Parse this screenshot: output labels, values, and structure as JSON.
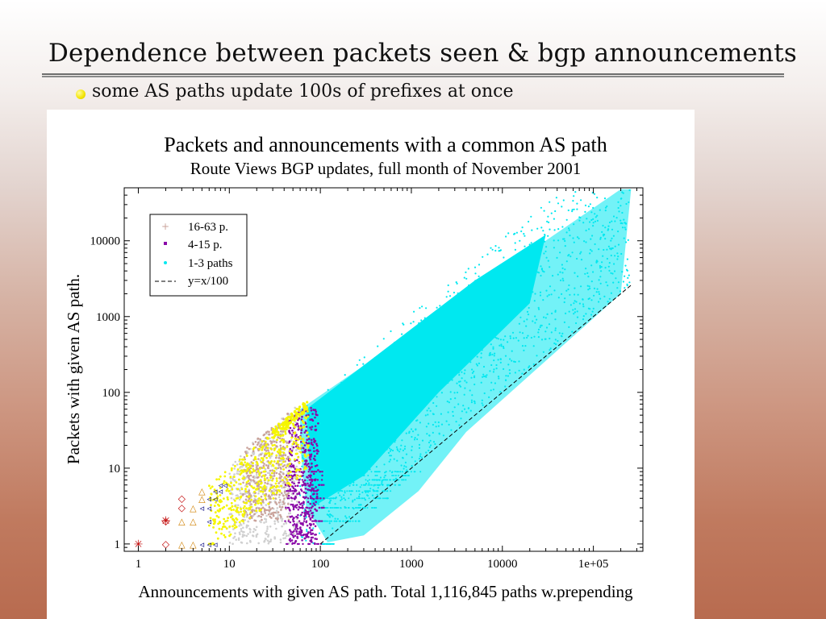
{
  "slide": {
    "title": "Dependence between packets seen & bgp announcements",
    "bullet": "some AS paths update 100s of prefixes at once",
    "bullet_color": "#f3e400"
  },
  "chart_data": {
    "type": "scatter",
    "title": "Packets and announcements with a common AS path",
    "subtitle": "Route Views BGP updates, full month of November 2001",
    "xlabel": "Announcements with given AS path. Total 1,116,845 paths w.prepending",
    "ylabel": "Packets with given AS path.",
    "xscale": "log",
    "yscale": "log",
    "xlim": [
      0.7,
      350000
    ],
    "ylim": [
      0.8,
      50000
    ],
    "x_ticks": [
      "1",
      "10",
      "100",
      "1000",
      "10000",
      "1e+05"
    ],
    "y_ticks": [
      "1",
      "10",
      "100",
      "1000",
      "10000"
    ],
    "legend_position": "top-left",
    "legend": [
      {
        "label": "16-63 p.",
        "color": "#c9a29a"
      },
      {
        "label": "4-15 p.",
        "color": "#8a0aa8"
      },
      {
        "label": "1-3 paths",
        "color": "#00e8f0"
      },
      {
        "label": "y=x/100",
        "color": "#000000"
      }
    ],
    "series": [
      {
        "name": "1-3 paths",
        "color": "#00e8f0",
        "x_range": [
          60,
          300000
        ],
        "y_range": [
          1,
          50000
        ]
      },
      {
        "name": "4-15 p.",
        "color": "#8a0aa8",
        "x_range": [
          40,
          100
        ],
        "y_range": [
          1,
          60
        ]
      },
      {
        "name": "16-63 p.",
        "color": "#c9a29a",
        "x_range": [
          10,
          60
        ],
        "y_range": [
          1,
          60
        ]
      },
      {
        "name": "y=x/100",
        "color": "#000000",
        "points": [
          [
            100,
            1
          ],
          [
            270000,
            2700
          ]
        ]
      }
    ],
    "other_series_colors": [
      "#f5f500",
      "#d0d0d0",
      "#000080",
      "#d08000",
      "#c00000"
    ]
  }
}
